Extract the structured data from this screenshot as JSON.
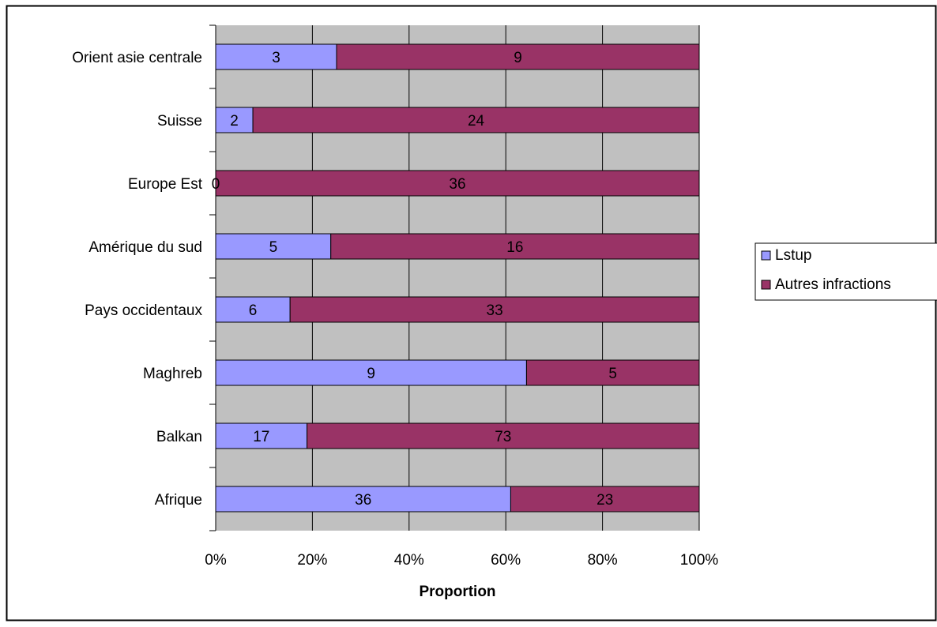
{
  "chart_data": {
    "type": "bar",
    "orientation": "horizontal",
    "stacking": "percent",
    "categories": [
      "Orient asie centrale",
      "Suisse",
      "Europe Est",
      "Amérique du sud",
      "Pays occidentaux",
      "Maghreb",
      "Balkan",
      "Afrique"
    ],
    "series": [
      {
        "name": "Lstup",
        "values": [
          3,
          2,
          0,
          5,
          6,
          9,
          17,
          36
        ],
        "color": "#9999ff"
      },
      {
        "name": "Autres infractions",
        "values": [
          9,
          24,
          36,
          16,
          33,
          5,
          73,
          23
        ],
        "color": "#993366"
      }
    ],
    "xlabel": "Proportion",
    "ylabel": "",
    "xlim": [
      0,
      100
    ],
    "x_ticks": [
      "0%",
      "20%",
      "40%",
      "60%",
      "80%",
      "100%"
    ],
    "grid": true,
    "plot_background": "#c0c0c0",
    "legend_position": "right"
  }
}
